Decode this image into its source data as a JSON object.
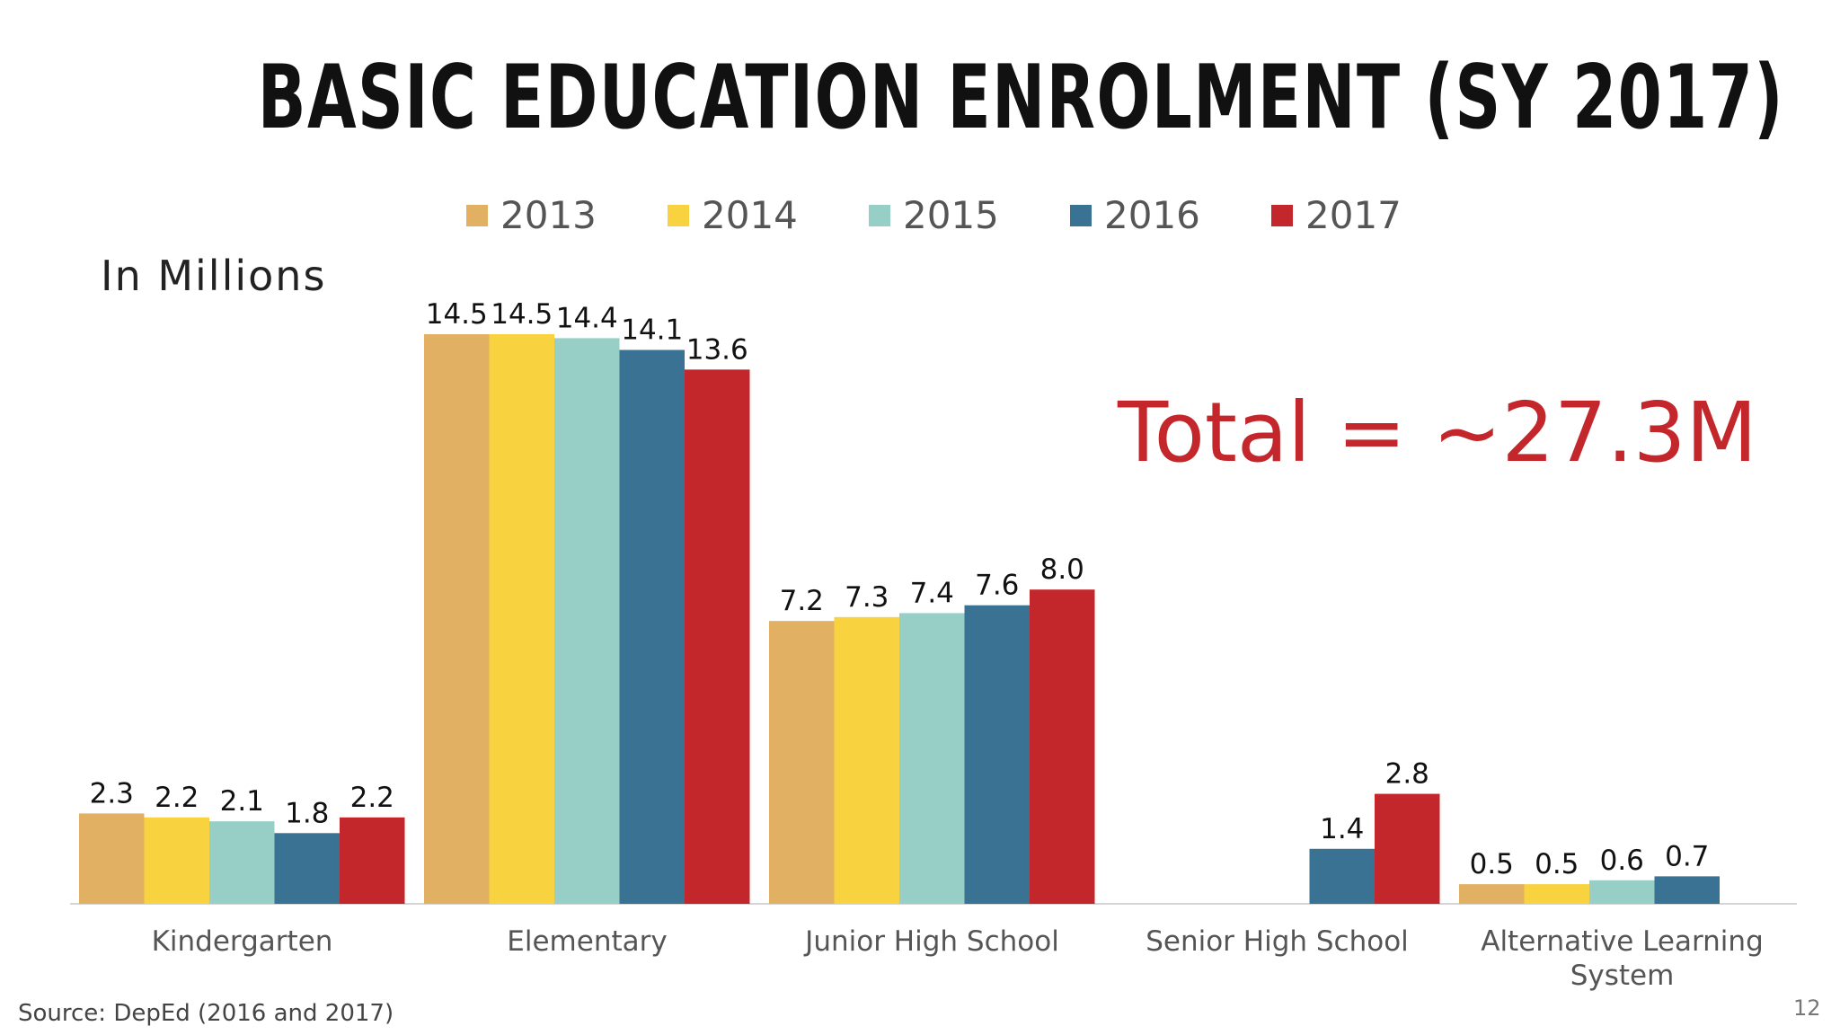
{
  "page": {
    "title": "BASIC EDUCATION ENROLMENT (SY 2017)",
    "unit_label": "In Millions",
    "total_annotation": "Total = ~27.3M",
    "source": "Source: DepEd (2016 and 2017)",
    "page_number": "12"
  },
  "chart_data": {
    "type": "bar",
    "title": "BASIC EDUCATION ENROLMENT (SY 2017)",
    "ylabel": "In Millions",
    "xlabel": "",
    "categories": [
      "Kindergarten",
      "Elementary",
      "Junior High School",
      "Senior High School",
      "Alternative Learning System"
    ],
    "series": [
      {
        "name": "2013",
        "color": "#e2b063",
        "values": [
          2.3,
          14.5,
          7.2,
          null,
          0.5
        ]
      },
      {
        "name": "2014",
        "color": "#f8d23f",
        "values": [
          2.2,
          14.5,
          7.3,
          null,
          0.5
        ]
      },
      {
        "name": "2015",
        "color": "#97cfc7",
        "values": [
          2.1,
          14.4,
          7.4,
          null,
          0.6
        ]
      },
      {
        "name": "2016",
        "color": "#3a7294",
        "values": [
          1.8,
          14.1,
          7.6,
          1.4,
          0.7
        ]
      },
      {
        "name": "2017",
        "color": "#c3272b",
        "values": [
          2.2,
          13.6,
          8.0,
          2.8,
          null
        ]
      }
    ],
    "value_labels": [
      [
        "2.3",
        "14.5",
        "7.2",
        "",
        "0.5"
      ],
      [
        "2.2",
        "14.5",
        "7.3",
        "",
        "0.5"
      ],
      [
        "2.1",
        "14.4",
        "7.4",
        "",
        "0.6"
      ],
      [
        "1.8",
        "14.1",
        "7.6",
        "1.4",
        "0.7"
      ],
      [
        "2.2",
        "13.6",
        "8.0",
        "2.8",
        ""
      ]
    ],
    "ylim": [
      0,
      14.5
    ],
    "grid": false,
    "legend_position": "top-center"
  }
}
